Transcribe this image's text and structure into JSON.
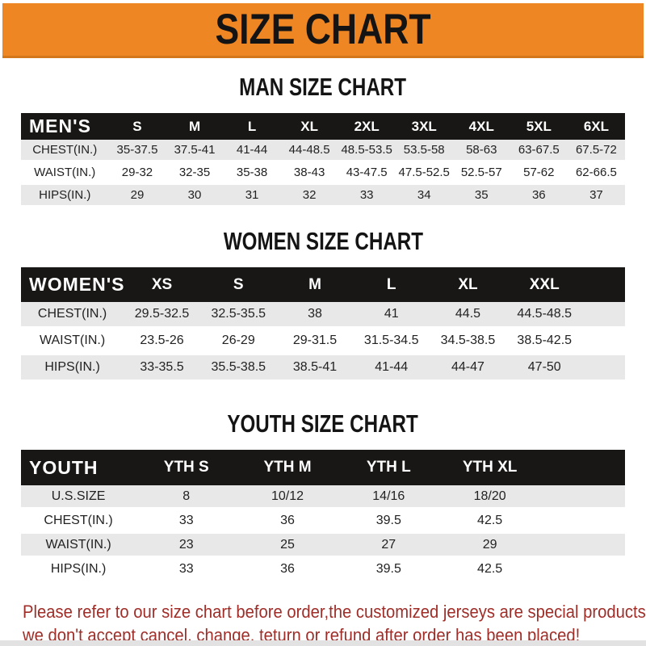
{
  "header": {
    "title": "SIZE CHART"
  },
  "colors": {
    "banner_bg": "#ee8623",
    "banner_border": "#d4761a",
    "header_bar": "#181715",
    "row_shade": "#e8e8e8",
    "title_text": "#141414",
    "footer_text": "#9f2d28",
    "bottom_strip": "#e2e2e2"
  },
  "sections": [
    {
      "title": "MAN SIZE CHART",
      "label": "MEN'S",
      "columns": [
        "S",
        "M",
        "L",
        "XL",
        "2XL",
        "3XL",
        "4XL",
        "5XL",
        "6XL"
      ],
      "rows": [
        {
          "label": "CHEST(IN.)",
          "values": [
            "35-37.5",
            "37.5-41",
            "41-44",
            "44-48.5",
            "48.5-53.5",
            "53.5-58",
            "58-63",
            "63-67.5",
            "67.5-72"
          ]
        },
        {
          "label": "WAIST(IN.)",
          "values": [
            "29-32",
            "32-35",
            "35-38",
            "38-43",
            "43-47.5",
            "47.5-52.5",
            "52.5-57",
            "57-62",
            "62-66.5"
          ]
        },
        {
          "label": "HIPS(IN.)",
          "values": [
            "29",
            "30",
            "31",
            "32",
            "33",
            "34",
            "35",
            "36",
            "37"
          ]
        }
      ]
    },
    {
      "title": "WOMEN SIZE CHART",
      "label": "WOMEN'S",
      "columns": [
        "XS",
        "S",
        "M",
        "L",
        "XL",
        "XXL"
      ],
      "rows": [
        {
          "label": "CHEST(IN.)",
          "values": [
            "29.5-32.5",
            "32.5-35.5",
            "38",
            "41",
            "44.5",
            "44.5-48.5"
          ]
        },
        {
          "label": "WAIST(IN.)",
          "values": [
            "23.5-26",
            "26-29",
            "29-31.5",
            "31.5-34.5",
            "34.5-38.5",
            "38.5-42.5"
          ]
        },
        {
          "label": "HIPS(IN.)",
          "values": [
            "33-35.5",
            "35.5-38.5",
            "38.5-41",
            "41-44",
            "44-47",
            "47-50"
          ]
        }
      ]
    },
    {
      "title": "YOUTH SIZE CHART",
      "label": "YOUTH",
      "columns": [
        "YTH S",
        "YTH M",
        "YTH L",
        "YTH XL"
      ],
      "rows": [
        {
          "label": "U.S.SIZE",
          "values": [
            "8",
            "10/12",
            "14/16",
            "18/20"
          ]
        },
        {
          "label": "CHEST(IN.)",
          "values": [
            "33",
            "36",
            "39.5",
            "42.5"
          ]
        },
        {
          "label": "WAIST(IN.)",
          "values": [
            "23",
            "25",
            "27",
            "29"
          ]
        },
        {
          "label": "HIPS(IN.)",
          "values": [
            "33",
            "36",
            "39.5",
            "42.5"
          ]
        }
      ]
    }
  ],
  "footer": {
    "line1": "Please refer to our size chart before order,the customized jerseys are special products,",
    "line2": "we don't accept cancel, change, teturn or refund after order has been placed!"
  }
}
